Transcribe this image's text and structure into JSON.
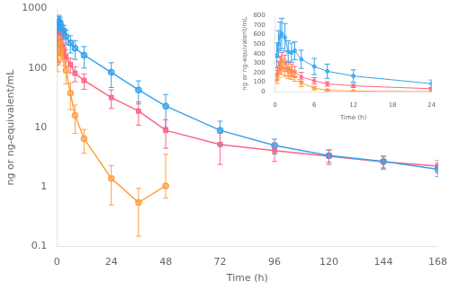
{
  "chart_data": [
    {
      "type": "line",
      "log": "y",
      "grid": false,
      "xlabel": "Time (h)",
      "ylabel": "ng or ng-equivalent/mL",
      "xlim": [
        0,
        168
      ],
      "xticks": [
        0,
        24,
        48,
        72,
        96,
        120,
        144,
        168
      ],
      "ylim": [
        0.1,
        1000
      ],
      "yticks": [
        0.1,
        1,
        10,
        100,
        1000
      ],
      "series": [
        {
          "marker": "circle",
          "x": [
            0.25,
            0.5,
            0.75,
            1.0,
            1.5,
            2.0,
            2.5,
            3.0,
            4.0,
            6.0,
            8.0,
            12.0,
            24.0,
            36.0,
            48.0,
            72.0,
            96.0,
            120.0,
            144.0,
            168.0
          ],
          "values": [
            380,
            500,
            580,
            610,
            570,
            420,
            410,
            430,
            340,
            265,
            215,
            165,
            85,
            43,
            23,
            9.0,
            5.0,
            3.4,
            2.7,
            2.0
          ],
          "yerr_plus": [
            130,
            140,
            150,
            160,
            145,
            115,
            100,
            95,
            95,
            85,
            75,
            65,
            38,
            18,
            13,
            3.8,
            1.4,
            0.8,
            0.6,
            0.5
          ],
          "yerr_minus": [
            130,
            140,
            150,
            160,
            145,
            115,
            100,
            95,
            95,
            85,
            75,
            65,
            38,
            18,
            13,
            3.8,
            1.4,
            0.8,
            0.6,
            0.5
          ]
        },
        {
          "marker": "square",
          "x": [
            0.25,
            0.5,
            0.75,
            1.0,
            1.5,
            2.0,
            2.5,
            3.0,
            4.0,
            6.0,
            8.0,
            12.0,
            24.0,
            36.0,
            48.0,
            72.0,
            96.0,
            120.0,
            144.0,
            168.0
          ],
          "values": [
            175,
            250,
            300,
            325,
            300,
            245,
            225,
            210,
            155,
            115,
            82,
            62,
            32,
            19,
            9.0,
            5.2,
            4.1,
            3.3,
            2.65,
            2.25
          ],
          "yerr_plus": [
            50,
            65,
            75,
            85,
            85,
            75,
            65,
            55,
            48,
            32,
            23,
            18,
            11,
            8,
            4.5,
            2.8,
            1.4,
            0.9,
            0.65,
            0.55
          ],
          "yerr_minus": [
            50,
            65,
            75,
            85,
            85,
            75,
            65,
            55,
            48,
            32,
            23,
            18,
            11,
            8,
            4.5,
            2.8,
            1.4,
            0.9,
            0.65,
            0.55
          ]
        },
        {
          "marker": "circle",
          "x": [
            0.25,
            0.5,
            0.75,
            1.0,
            1.5,
            2.0,
            2.5,
            3.0,
            4.0,
            6.0,
            8.0,
            12.0,
            24.0,
            36.0,
            48.0
          ],
          "values": [
            125,
            205,
            255,
            265,
            245,
            215,
            195,
            165,
            92,
            38,
            16,
            6.5,
            1.4,
            0.55,
            1.05
          ],
          "yerr_plus": [
            38,
            58,
            68,
            85,
            85,
            75,
            65,
            55,
            38,
            18,
            8,
            2.8,
            0.9,
            0.4,
            2.5
          ],
          "yerr_minus": [
            38,
            58,
            68,
            85,
            85,
            75,
            65,
            55,
            38,
            18,
            8,
            2.8,
            0.9,
            0.4,
            0.4
          ]
        }
      ]
    },
    {
      "type": "line",
      "grid": false,
      "xlabel": "Time (h)",
      "ylabel": "ng or ng-equivalent/mL",
      "xlim": [
        0,
        24
      ],
      "xticks": [
        0,
        6,
        12,
        18,
        24
      ],
      "ylim": [
        0,
        800
      ],
      "yticks": [
        0,
        100,
        200,
        300,
        400,
        500,
        600,
        700,
        800
      ],
      "series": [
        {
          "marker": "circle",
          "x": [
            0.25,
            0.5,
            0.75,
            1.0,
            1.5,
            2.0,
            2.5,
            3.0,
            4.0,
            6.0,
            8.0,
            12.0,
            24.0
          ],
          "values": [
            380,
            500,
            580,
            610,
            570,
            420,
            410,
            430,
            340,
            265,
            215,
            165,
            85
          ],
          "yerr_plus": [
            130,
            140,
            150,
            160,
            145,
            115,
            100,
            95,
            95,
            85,
            75,
            65,
            38
          ],
          "yerr_minus": [
            130,
            140,
            150,
            160,
            145,
            115,
            100,
            95,
            95,
            85,
            75,
            65,
            38
          ]
        },
        {
          "marker": "square",
          "x": [
            0.25,
            0.5,
            0.75,
            1.0,
            1.5,
            2.0,
            2.5,
            3.0,
            4.0,
            6.0,
            8.0,
            12.0,
            24.0
          ],
          "values": [
            175,
            250,
            300,
            325,
            300,
            245,
            225,
            210,
            155,
            115,
            82,
            62,
            32
          ],
          "yerr_plus": [
            50,
            65,
            75,
            85,
            85,
            75,
            65,
            55,
            48,
            32,
            23,
            18,
            11
          ],
          "yerr_minus": [
            50,
            65,
            75,
            85,
            85,
            75,
            65,
            55,
            48,
            32,
            23,
            18,
            11
          ]
        },
        {
          "marker": "circle",
          "x": [
            0.25,
            0.5,
            0.75,
            1.0,
            1.5,
            2.0,
            2.5,
            3.0,
            4.0,
            6.0,
            8.0,
            12.0,
            24.0
          ],
          "values": [
            125,
            205,
            255,
            265,
            245,
            215,
            195,
            165,
            92,
            38,
            16,
            6.5,
            1.4
          ],
          "yerr_plus": [
            38,
            58,
            68,
            85,
            85,
            75,
            65,
            55,
            38,
            18,
            8,
            2.8,
            0.9
          ],
          "yerr_minus": [
            38,
            58,
            68,
            85,
            85,
            75,
            65,
            55,
            38,
            18,
            8,
            2.8,
            0.9
          ]
        }
      ]
    }
  ]
}
